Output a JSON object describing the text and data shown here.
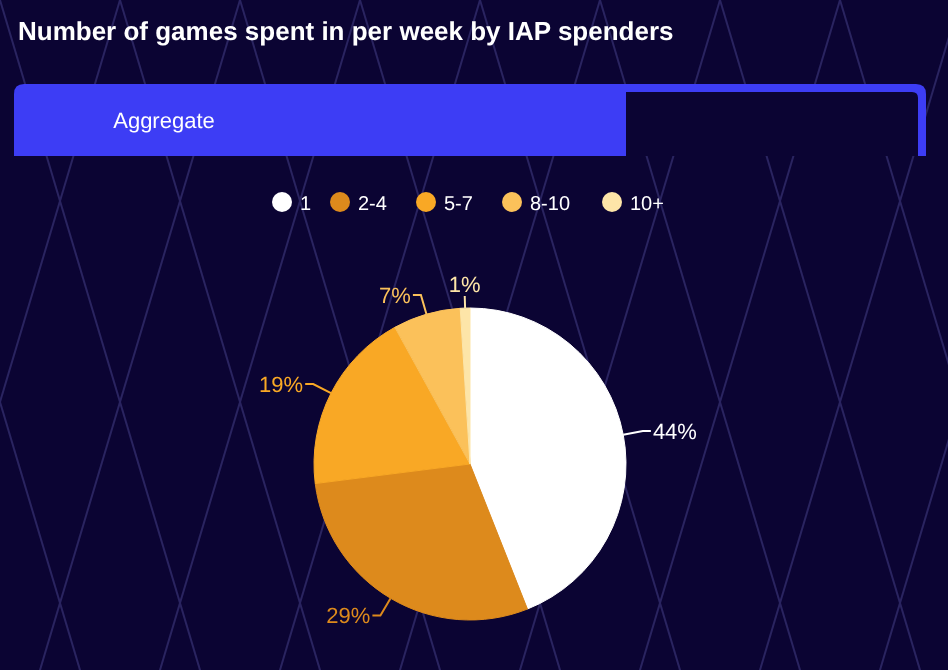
{
  "chart_data": {
    "type": "pie",
    "title": "Number of games spent in per week by IAP spenders",
    "annotations": [
      "Aggregate"
    ],
    "categories": [
      "1",
      "2-4",
      "5-7",
      "8-10",
      "10+"
    ],
    "values": [
      44,
      29,
      19,
      7,
      1
    ],
    "value_labels": [
      "44%",
      "29%",
      "19%",
      "7%",
      "1%"
    ],
    "colors": [
      "#ffffff",
      "#dd8a1c",
      "#f9a825",
      "#fbc15a",
      "#fde5a8"
    ],
    "legend": "top"
  }
}
